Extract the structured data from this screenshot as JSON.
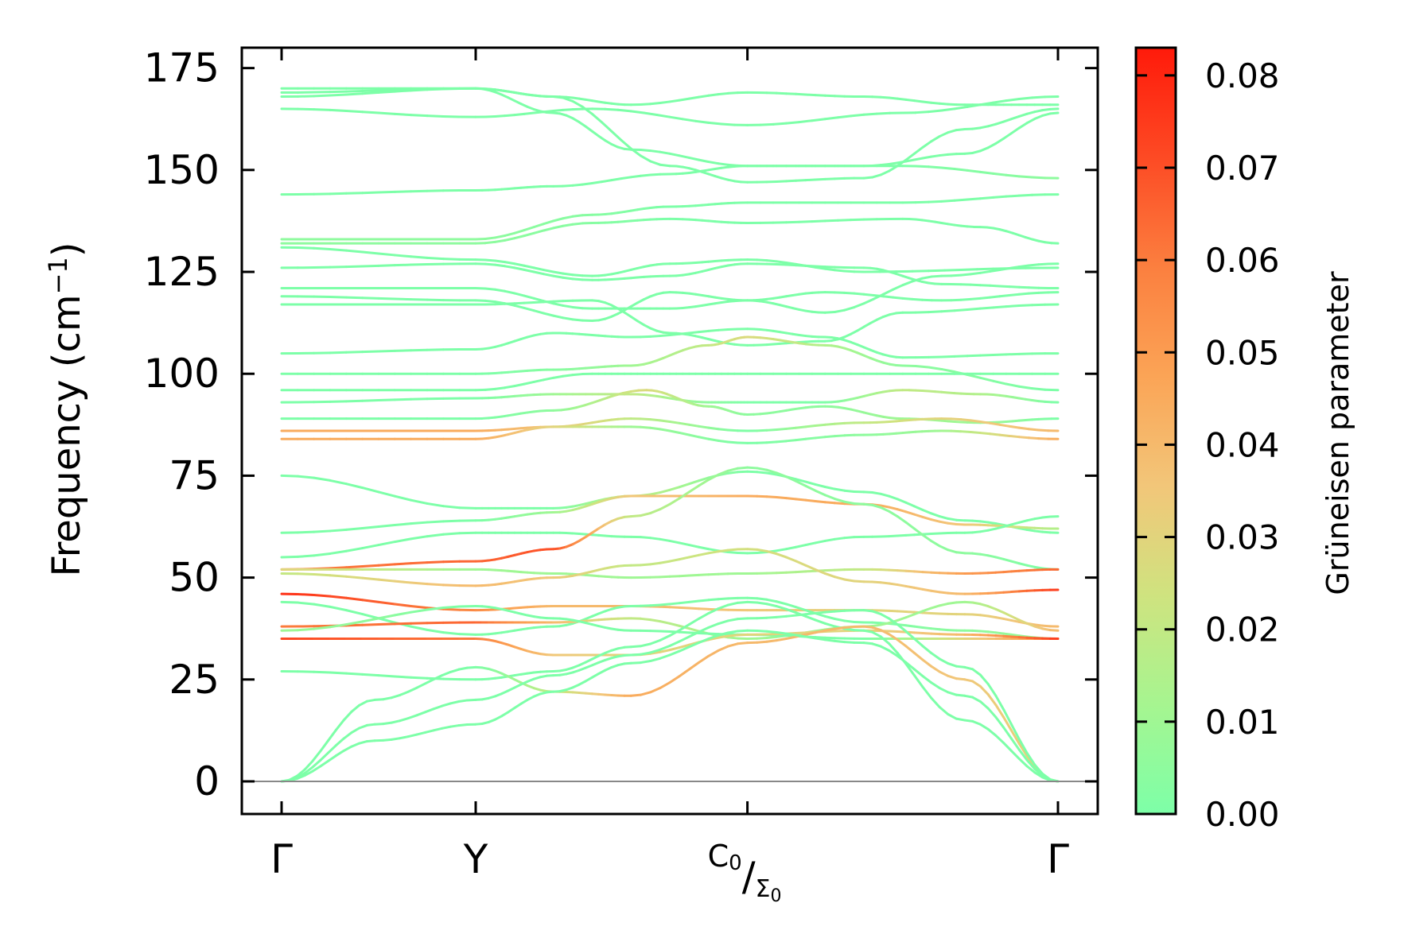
{
  "chart_data": {
    "type": "line",
    "title": "",
    "xlabel": "",
    "ylabel": "Frequency (cm",
    "ylabel_unit_sup": "−1",
    "ylabel_close": ")",
    "ylim": [
      -8,
      180
    ],
    "yticks": [
      0,
      25,
      50,
      75,
      100,
      125,
      150,
      175
    ],
    "ytick_labels": [
      "0",
      "25",
      "50",
      "75",
      "100",
      "125",
      "150",
      "175"
    ],
    "x_high_symmetry": [
      {
        "label": "Γ",
        "pos": 0.0
      },
      {
        "label": "Y",
        "pos": 0.25
      },
      {
        "label": "C",
        "sub": "0",
        "label2": "Σ",
        "sub2": "0",
        "pos": 0.6
      },
      {
        "label": "Γ",
        "pos": 1.0
      }
    ],
    "zero_line": 0,
    "colorbar": {
      "label": "Grüneisen parameter",
      "range": [
        0.0,
        0.083
      ],
      "ticks": [
        0.0,
        0.01,
        0.02,
        0.03,
        0.04,
        0.05,
        0.06,
        0.07,
        0.08
      ],
      "tick_labels": [
        "0.00",
        "0.01",
        "0.02",
        "0.03",
        "0.04",
        "0.05",
        "0.06",
        "0.07",
        "0.08"
      ],
      "colors": [
        "#7dffa8",
        "#a6f590",
        "#cfe37f",
        "#f2c679",
        "#fba456",
        "#fb7f3f",
        "#fd4a24",
        "#ff1a0a"
      ]
    },
    "series": [
      {
        "name": "band-01",
        "x": [
          0,
          0.25,
          0.35,
          0.45,
          0.6,
          0.75,
          0.88,
          1.0
        ],
        "y": [
          169,
          170,
          168,
          166,
          169,
          168,
          166,
          166
        ],
        "g": [
          0,
          0,
          0,
          0,
          0,
          0,
          0,
          0
        ]
      },
      {
        "name": "band-02",
        "x": [
          0,
          0.25,
          0.35,
          0.45,
          0.6,
          0.75,
          0.88,
          1.0
        ],
        "y": [
          168,
          170,
          164,
          155,
          151,
          151,
          154,
          164
        ],
        "g": [
          0,
          0,
          0,
          0,
          0,
          0,
          0,
          0
        ]
      },
      {
        "name": "band-03",
        "x": [
          0,
          0.25,
          0.4,
          0.6,
          0.8,
          1.0
        ],
        "y": [
          165,
          163,
          165,
          161,
          164,
          168
        ],
        "g": [
          0,
          0,
          0,
          0,
          0,
          0
        ]
      },
      {
        "name": "band-04",
        "x": [
          0,
          0.25,
          0.35,
          0.5,
          0.6,
          0.75,
          0.88,
          1.0
        ],
        "y": [
          170,
          170,
          168,
          151,
          147,
          148,
          160,
          165
        ],
        "g": [
          0,
          0,
          0,
          0,
          0,
          0,
          0,
          0
        ]
      },
      {
        "name": "band-05",
        "x": [
          0,
          0.25,
          0.35,
          0.5,
          0.6,
          0.8,
          1.0
        ],
        "y": [
          144,
          145,
          146,
          149,
          151,
          151,
          148
        ],
        "g": [
          0,
          0,
          0,
          0,
          0,
          0,
          0.005
        ]
      },
      {
        "name": "band-06",
        "x": [
          0,
          0.25,
          0.4,
          0.5,
          0.6,
          0.8,
          1.0
        ],
        "y": [
          133,
          133,
          139,
          141,
          142,
          142,
          144
        ],
        "g": [
          0.005,
          0.005,
          0.003,
          0,
          0,
          0,
          0
        ]
      },
      {
        "name": "band-07",
        "x": [
          0,
          0.25,
          0.4,
          0.5,
          0.6,
          0.8,
          0.9,
          1.0
        ],
        "y": [
          132,
          132,
          137,
          138,
          137,
          138,
          136,
          132
        ],
        "g": [
          0.005,
          0.005,
          0.003,
          0,
          0,
          0,
          0,
          0
        ]
      },
      {
        "name": "band-08",
        "x": [
          0,
          0.25,
          0.4,
          0.5,
          0.6,
          0.75,
          1.0
        ],
        "y": [
          131,
          128,
          124,
          127,
          128,
          125,
          126
        ],
        "g": [
          0,
          0,
          0,
          0,
          0,
          0,
          0
        ]
      },
      {
        "name": "band-09",
        "x": [
          0,
          0.25,
          0.4,
          0.5,
          0.6,
          0.75,
          0.85,
          1.0
        ],
        "y": [
          126,
          127,
          123,
          124,
          127,
          126,
          122,
          121
        ],
        "g": [
          0,
          0,
          0,
          0,
          0,
          0,
          0,
          0
        ]
      },
      {
        "name": "band-10",
        "x": [
          0,
          0.25,
          0.4,
          0.5,
          0.6,
          0.7,
          0.85,
          1.0
        ],
        "y": [
          121,
          121,
          116,
          116,
          118,
          115,
          124,
          127
        ],
        "g": [
          0,
          0,
          0,
          0,
          0,
          0,
          0,
          0
        ]
      },
      {
        "name": "band-11",
        "x": [
          0,
          0.25,
          0.4,
          0.5,
          0.6,
          0.7,
          0.85,
          1.0
        ],
        "y": [
          119,
          118,
          113,
          120,
          118,
          120,
          118,
          120
        ],
        "g": [
          0,
          0,
          0,
          0,
          0,
          0,
          0,
          0
        ]
      },
      {
        "name": "band-12",
        "x": [
          0,
          0.25,
          0.4,
          0.5,
          0.6,
          0.7,
          0.8,
          1.0
        ],
        "y": [
          117,
          117,
          118,
          110,
          107,
          108,
          115,
          117
        ],
        "g": [
          0,
          0,
          0,
          0,
          0,
          0,
          0,
          0
        ]
      },
      {
        "name": "band-13",
        "x": [
          0,
          0.25,
          0.35,
          0.45,
          0.6,
          0.7,
          0.8,
          1.0
        ],
        "y": [
          105,
          106,
          110,
          109,
          111,
          109,
          104,
          105
        ],
        "g": [
          0,
          0,
          0,
          0,
          0,
          0,
          0,
          0
        ]
      },
      {
        "name": "band-14",
        "x": [
          0,
          0.25,
          0.35,
          0.45,
          0.55,
          0.6,
          0.7,
          0.8,
          1.0
        ],
        "y": [
          100,
          100,
          101,
          102,
          107,
          109,
          107,
          102,
          96
        ],
        "g": [
          0,
          0,
          0.003,
          0.01,
          0.02,
          0.028,
          0.015,
          0.005,
          0
        ]
      },
      {
        "name": "band-15",
        "x": [
          0,
          0.25,
          0.4,
          0.5,
          0.6,
          0.8,
          1.0
        ],
        "y": [
          96,
          96,
          100,
          100,
          100,
          100,
          100
        ],
        "g": [
          0,
          0,
          0,
          0,
          0,
          0,
          0
        ]
      },
      {
        "name": "band-16",
        "x": [
          0,
          0.25,
          0.35,
          0.45,
          0.55,
          0.6,
          0.7,
          0.8,
          0.9,
          1.0
        ],
        "y": [
          93,
          94,
          95,
          95,
          93,
          93,
          93,
          96,
          95,
          93
        ],
        "g": [
          0,
          0,
          0.01,
          0.02,
          0.005,
          0,
          0,
          0.02,
          0.015,
          0
        ]
      },
      {
        "name": "band-17",
        "x": [
          0,
          0.25,
          0.35,
          0.47,
          0.55,
          0.6,
          0.7,
          0.8,
          0.9,
          1.0
        ],
        "y": [
          89,
          89,
          91,
          96,
          92,
          90,
          92,
          89,
          88,
          89
        ],
        "g": [
          0,
          0,
          0.005,
          0.028,
          0.01,
          0.005,
          0.005,
          0.01,
          0.01,
          0
        ]
      },
      {
        "name": "band-18",
        "x": [
          0,
          0.25,
          0.35,
          0.45,
          0.6,
          0.75,
          0.85,
          1.0
        ],
        "y": [
          86,
          86,
          87,
          89,
          86,
          88,
          89,
          86
        ],
        "g": [
          0.045,
          0.045,
          0.035,
          0.02,
          0,
          0.02,
          0.03,
          0.04
        ]
      },
      {
        "name": "band-19",
        "x": [
          0,
          0.25,
          0.35,
          0.45,
          0.6,
          0.75,
          0.85,
          1.0
        ],
        "y": [
          84,
          84,
          87,
          87,
          83,
          85,
          86,
          84
        ],
        "g": [
          0.045,
          0.045,
          0.03,
          0.01,
          0,
          0.005,
          0.01,
          0.045
        ]
      },
      {
        "name": "band-20",
        "x": [
          0,
          0.25,
          0.35,
          0.45,
          0.6,
          0.75,
          0.88,
          1.0
        ],
        "y": [
          75,
          67,
          67,
          70,
          76,
          71,
          64,
          61
        ],
        "g": [
          0,
          0,
          0,
          0.02,
          0,
          0,
          0,
          0
        ]
      },
      {
        "name": "band-21",
        "x": [
          0,
          0.25,
          0.35,
          0.45,
          0.6,
          0.75,
          0.88,
          1.0
        ],
        "y": [
          61,
          64,
          66,
          70,
          70,
          68,
          63,
          62
        ],
        "g": [
          0,
          0,
          0.01,
          0.035,
          0.045,
          0.045,
          0.035,
          0.015
        ]
      },
      {
        "name": "band-22",
        "x": [
          0,
          0.25,
          0.35,
          0.45,
          0.6,
          0.75,
          0.88,
          1.0
        ],
        "y": [
          55,
          61,
          61,
          60,
          56,
          60,
          61,
          65
        ],
        "g": [
          0,
          0,
          0,
          0,
          0,
          0,
          0,
          0
        ]
      },
      {
        "name": "band-23",
        "x": [
          0,
          0.25,
          0.35,
          0.45,
          0.6,
          0.75,
          0.88,
          1.0
        ],
        "y": [
          52,
          54,
          57,
          65,
          77,
          68,
          56,
          52
        ],
        "g": [
          0.06,
          0.065,
          0.07,
          0.02,
          0.005,
          0.005,
          0.005,
          0
        ]
      },
      {
        "name": "band-24",
        "x": [
          0,
          0.25,
          0.35,
          0.45,
          0.6,
          0.75,
          0.88,
          1.0
        ],
        "y": [
          52,
          52,
          51,
          50,
          51,
          52,
          51,
          52
        ],
        "g": [
          0.03,
          0.01,
          0.01,
          0.01,
          0.01,
          0.02,
          0.05,
          0.065
        ]
      },
      {
        "name": "band-25",
        "x": [
          0,
          0.25,
          0.35,
          0.45,
          0.6,
          0.75,
          0.88,
          1.0
        ],
        "y": [
          51,
          48,
          50,
          53,
          57,
          49,
          46,
          47
        ],
        "g": [
          0.02,
          0.04,
          0.035,
          0.02,
          0.025,
          0.03,
          0.04,
          0.075
        ]
      },
      {
        "name": "band-26",
        "x": [
          0,
          0.25,
          0.35,
          0.45,
          0.6,
          0.75,
          0.88,
          1.0
        ],
        "y": [
          46,
          42,
          43,
          43,
          42,
          42,
          41,
          38
        ],
        "g": [
          0.078,
          0.055,
          0.04,
          0.04,
          0.035,
          0.03,
          0.03,
          0.04
        ]
      },
      {
        "name": "band-27",
        "x": [
          0,
          0.25,
          0.35,
          0.45,
          0.6,
          0.75,
          0.88,
          1.0
        ],
        "y": [
          44,
          36,
          38,
          43,
          45,
          39,
          37,
          35
        ],
        "g": [
          0,
          0,
          0,
          0,
          0,
          0,
          0.005,
          0.01
        ]
      },
      {
        "name": "band-28",
        "x": [
          0,
          0.25,
          0.35,
          0.45,
          0.6,
          0.75,
          0.88,
          1.0
        ],
        "y": [
          38,
          39,
          39,
          40,
          35,
          38,
          44,
          37
        ],
        "g": [
          0.06,
          0.065,
          0.04,
          0.02,
          0.01,
          0.01,
          0.01,
          0.04
        ]
      },
      {
        "name": "band-29",
        "x": [
          0,
          0.25,
          0.35,
          0.45,
          0.6,
          0.75,
          0.88,
          1.0
        ],
        "y": [
          37,
          43,
          40,
          37,
          36,
          35,
          35,
          35
        ],
        "g": [
          0.01,
          0,
          0,
          0,
          0,
          0,
          0.03,
          0.055
        ]
      },
      {
        "name": "band-30",
        "x": [
          0,
          0.25,
          0.35,
          0.45,
          0.6,
          0.75,
          0.88,
          1.0
        ],
        "y": [
          35,
          35,
          31,
          31,
          36,
          37,
          36,
          35
        ],
        "g": [
          0.072,
          0.06,
          0.035,
          0.03,
          0.03,
          0.03,
          0.04,
          0.075
        ]
      },
      {
        "name": "band-31",
        "x": [
          0,
          0.25,
          0.35,
          0.45,
          0.6,
          0.75,
          0.88,
          1.0
        ],
        "y": [
          27,
          25,
          27,
          33,
          44,
          37,
          15,
          0
        ],
        "g": [
          0,
          0,
          0,
          0,
          0,
          0,
          0,
          0
        ]
      },
      {
        "name": "band-32",
        "x": [
          0,
          0.12,
          0.25,
          0.35,
          0.45,
          0.6,
          0.75,
          0.88,
          1.0
        ],
        "y": [
          0,
          20,
          28,
          22,
          21,
          34,
          38,
          25,
          0
        ],
        "g": [
          0,
          0,
          0,
          0.02,
          0.045,
          0.04,
          0.04,
          0.035,
          0.03
        ]
      },
      {
        "name": "band-33",
        "x": [
          0,
          0.12,
          0.25,
          0.35,
          0.45,
          0.6,
          0.75,
          0.88,
          1.0
        ],
        "y": [
          0,
          14,
          20,
          26,
          31,
          40,
          42,
          28,
          0
        ],
        "g": [
          0,
          0,
          0,
          0,
          0,
          0,
          0,
          0,
          0
        ]
      },
      {
        "name": "band-34",
        "x": [
          0,
          0.12,
          0.25,
          0.35,
          0.45,
          0.6,
          0.75,
          0.88,
          1.0
        ],
        "y": [
          0,
          10,
          14,
          22,
          29,
          37,
          34,
          21,
          0
        ],
        "g": [
          0,
          0,
          0,
          0,
          0,
          0,
          0,
          0,
          0
        ]
      }
    ]
  }
}
